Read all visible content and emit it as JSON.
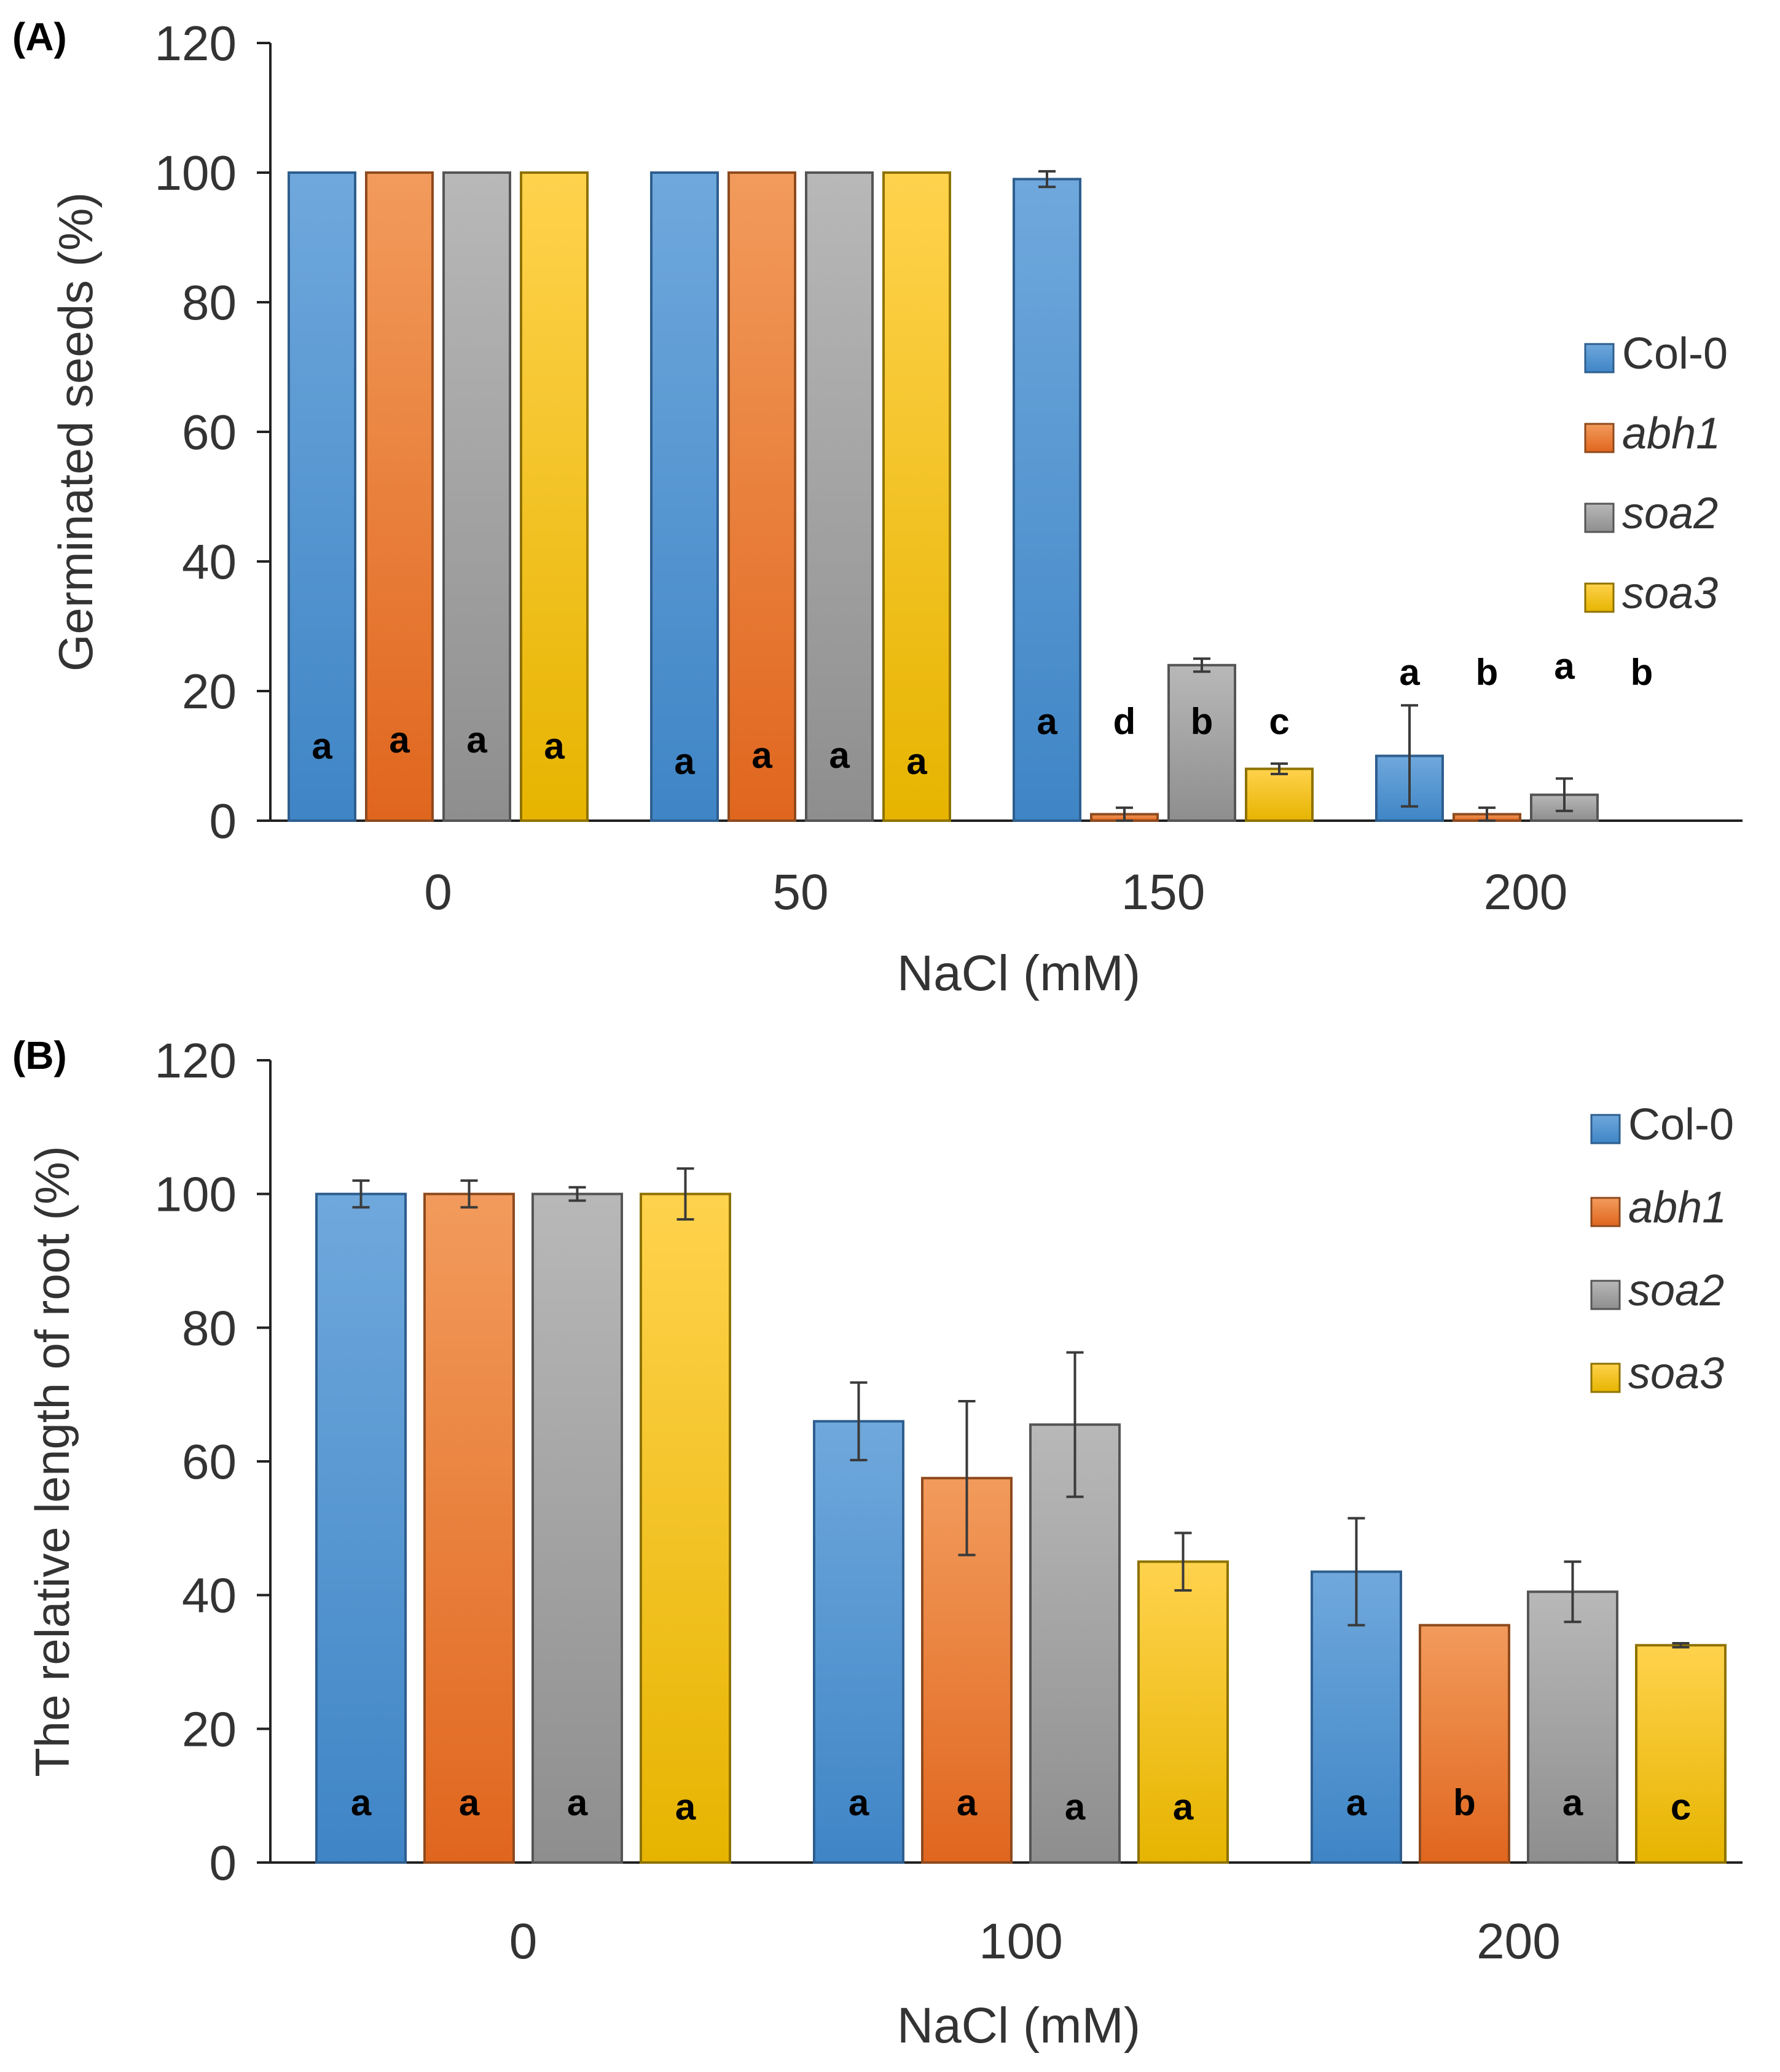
{
  "series_names": [
    "Col-0",
    "abh1",
    "soa2",
    "soa3"
  ],
  "series_italic": [
    false,
    true,
    true,
    true
  ],
  "colors": {
    "Col-0": {
      "top": "#6FA8DC",
      "bottom": "#3F85C6",
      "stroke": "#2E5E8E"
    },
    "abh1": {
      "top": "#F29B5C",
      "bottom": "#E0661E",
      "stroke": "#8E4A1E"
    },
    "soa2": {
      "top": "#B8B8B8",
      "bottom": "#8E8E8E",
      "stroke": "#555555"
    },
    "soa3": {
      "top": "#FFD24D",
      "bottom": "#E6B400",
      "stroke": "#8E7200"
    },
    "axis": "#222222",
    "error_bar": "#3A3A3A"
  },
  "chart_data": [
    {
      "panel_label": "(A)",
      "type": "bar",
      "ylabel": "Germinated seeds (%)",
      "xlabel": "NaCl (mM)",
      "ylim": [
        0,
        120
      ],
      "yticks": [
        "0",
        "20",
        "40",
        "60",
        "80",
        "100",
        "120"
      ],
      "categories": [
        "0",
        "50",
        "150",
        "200"
      ],
      "legend_position": "right",
      "series": [
        {
          "name": "Col-0",
          "values": [
            100,
            100,
            99,
            10
          ],
          "errors": [
            0,
            0,
            1.2,
            7.8
          ],
          "letters": [
            "a",
            "a",
            "a",
            "a"
          ]
        },
        {
          "name": "abh1",
          "values": [
            100,
            100,
            1,
            1
          ],
          "errors": [
            0,
            0,
            1,
            1
          ],
          "letters": [
            "a",
            "a",
            "d",
            "b"
          ]
        },
        {
          "name": "soa2",
          "values": [
            100,
            100,
            24,
            4
          ],
          "errors": [
            0,
            0,
            1,
            2.5
          ],
          "letters": [
            "a",
            "a",
            "b",
            "a"
          ]
        },
        {
          "name": "soa3",
          "values": [
            100,
            100,
            8,
            0
          ],
          "errors": [
            0,
            0,
            0.8,
            0
          ],
          "letters": [
            "a",
            "a",
            "c",
            "b"
          ]
        }
      ]
    },
    {
      "panel_label": "(B)",
      "type": "bar",
      "ylabel": "The relative length of root (%)",
      "xlabel": "NaCl (mM)",
      "ylim": [
        0,
        120
      ],
      "yticks": [
        "0",
        "20",
        "40",
        "60",
        "80",
        "100",
        "120"
      ],
      "categories": [
        "0",
        "100",
        "200"
      ],
      "legend_position": "top-right",
      "series": [
        {
          "name": "Col-0",
          "values": [
            100,
            66,
            43.5
          ],
          "errors": [
            2,
            5.8,
            8
          ],
          "letters": [
            "a",
            "a",
            "a"
          ]
        },
        {
          "name": "abh1",
          "values": [
            100,
            57.5,
            35.5
          ],
          "errors": [
            2,
            11.5,
            0
          ],
          "letters": [
            "a",
            "a",
            "b"
          ]
        },
        {
          "name": "soa2",
          "values": [
            100,
            65.5,
            40.5
          ],
          "errors": [
            1,
            10.8,
            4.5
          ],
          "letters": [
            "a",
            "a",
            "a"
          ]
        },
        {
          "name": "soa3",
          "values": [
            100,
            45,
            32.5
          ],
          "errors": [
            3.8,
            4.3,
            0.3
          ],
          "letters": [
            "a",
            "a",
            "c"
          ]
        }
      ]
    }
  ]
}
